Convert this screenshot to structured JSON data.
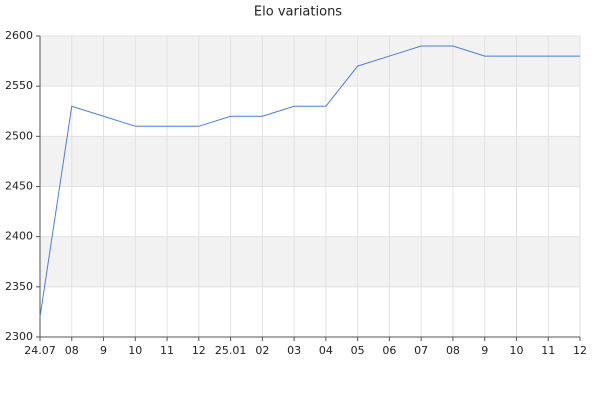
{
  "chart_data": {
    "type": "line",
    "title": "Elo variations",
    "categories": [
      "24.07",
      "08",
      "9",
      "10",
      "11",
      "12",
      "25.01",
      "02",
      "03",
      "04",
      "05",
      "06",
      "07",
      "08",
      "9",
      "10",
      "11",
      "12"
    ],
    "series": [
      {
        "name": "Elo",
        "color": "#4a7fd8",
        "values": [
          2320,
          2530,
          2520,
          2510,
          2510,
          2510,
          2520,
          2520,
          2530,
          2530,
          2570,
          2580,
          2590,
          2590,
          2580,
          2580,
          2580,
          2580
        ]
      }
    ],
    "ylim": [
      2300,
      2600
    ],
    "yticks": [
      2300,
      2350,
      2400,
      2450,
      2500,
      2550,
      2600
    ],
    "grid": true
  }
}
